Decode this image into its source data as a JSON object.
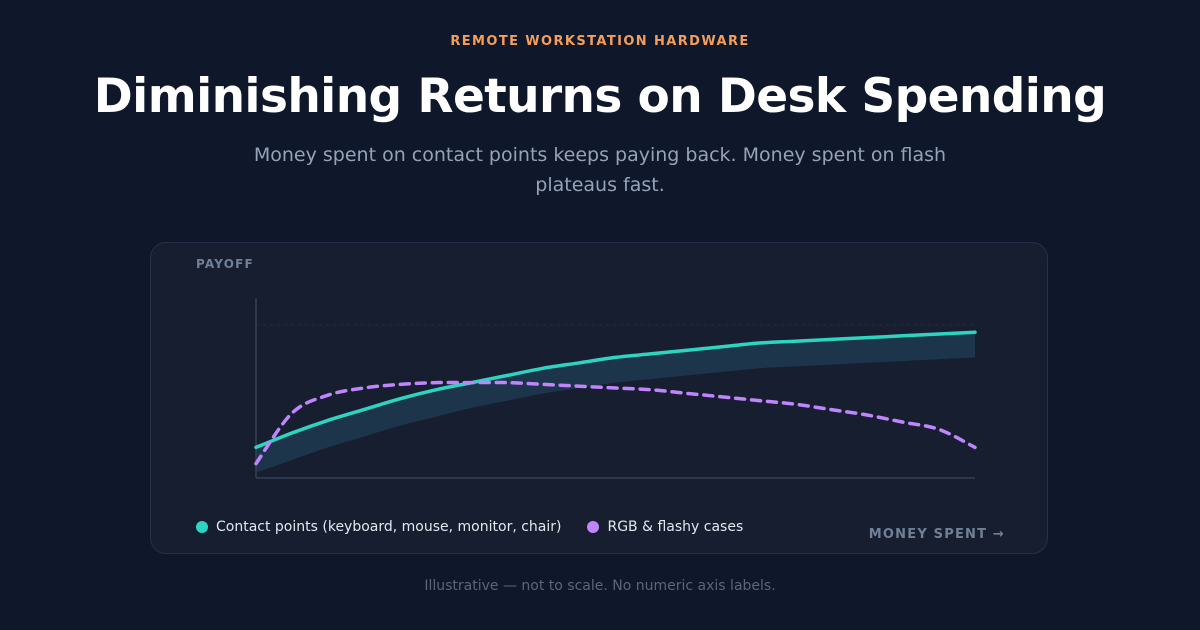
{
  "header": {
    "eyebrow": "REMOTE WORKSTATION HARDWARE",
    "title": "Diminishing Returns on Desk Spending",
    "subtitle": "Money spent on contact points keeps paying back. Money spent on flash plateaus fast."
  },
  "footnote": "Illustrative — not to scale. No numeric axis labels.",
  "colors": {
    "background": "#0f172a",
    "card": "#161e30",
    "accent_eyebrow": "#f59e5b",
    "contact_points": "#2dd4bf",
    "rgb_flashy": "#c084fc",
    "gap_band": "#1e3a4f",
    "axis": "#334155"
  },
  "chart_data": {
    "type": "line",
    "ylabel": "PAYOFF",
    "xlabel": "MONEY SPENT →",
    "numeric_axis_labels": false,
    "xlim": [
      0,
      1
    ],
    "ylim": [
      0,
      1
    ],
    "grid": true,
    "legend_position": "bottom-left",
    "x": [
      0,
      0.05,
      0.1,
      0.15,
      0.2,
      0.25,
      0.3,
      0.35,
      0.4,
      0.45,
      0.5,
      0.55,
      0.6,
      0.65,
      0.7,
      0.75,
      0.8,
      0.85,
      0.9,
      0.95,
      1
    ],
    "series": [
      {
        "name": "Contact points (keyboard, mouse, monitor, chair)",
        "style": "solid",
        "color": "#2dd4bf",
        "values": [
          0.17,
          0.25,
          0.32,
          0.38,
          0.44,
          0.49,
          0.53,
          0.57,
          0.61,
          0.64,
          0.67,
          0.69,
          0.71,
          0.73,
          0.75,
          0.76,
          0.77,
          0.78,
          0.79,
          0.8,
          0.81
        ]
      },
      {
        "name": "RGB & flashy cases",
        "style": "dashed",
        "color": "#c084fc",
        "values": [
          0.08,
          0.36,
          0.46,
          0.5,
          0.52,
          0.53,
          0.53,
          0.53,
          0.52,
          0.51,
          0.5,
          0.49,
          0.47,
          0.45,
          0.43,
          0.41,
          0.38,
          0.35,
          0.31,
          0.27,
          0.17
        ]
      }
    ],
    "band": {
      "description": "shaded gap under contact-points curve",
      "lower": [
        0.03,
        0.1,
        0.17,
        0.23,
        0.29,
        0.34,
        0.39,
        0.43,
        0.47,
        0.5,
        0.53,
        0.55,
        0.57,
        0.59,
        0.61,
        0.62,
        0.63,
        0.64,
        0.65,
        0.66,
        0.67
      ]
    }
  }
}
